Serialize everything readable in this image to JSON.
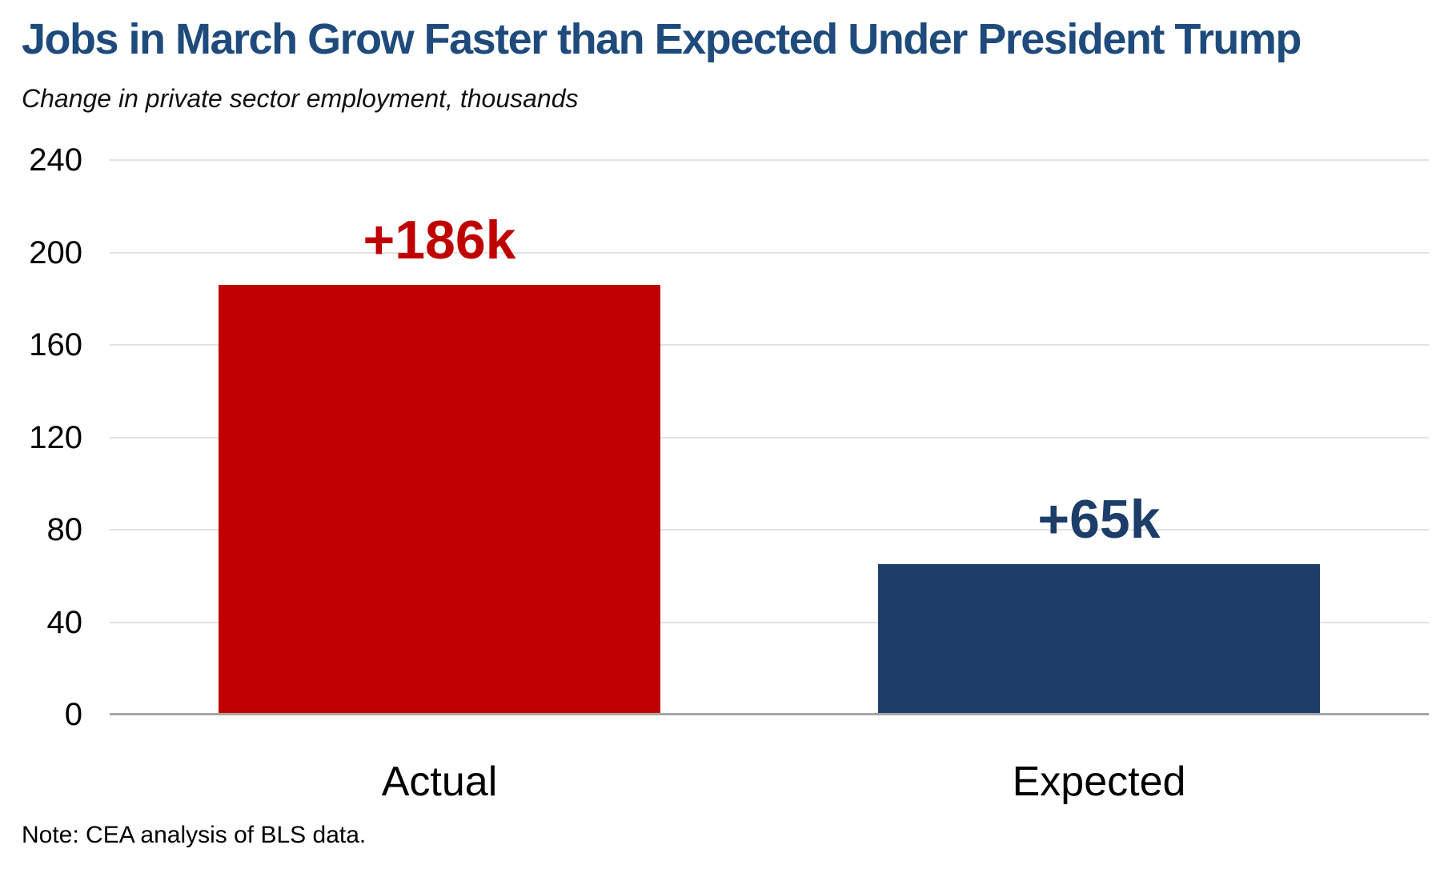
{
  "chart_data": {
    "type": "bar",
    "title": "Jobs in March Grow Faster than Expected Under President Trump",
    "subtitle": "Change in private sector employment, thousands",
    "categories": [
      "Actual",
      "Expected"
    ],
    "values": [
      186,
      65
    ],
    "data_labels": [
      "+186k",
      "+65k"
    ],
    "bar_colors": [
      "#c00000",
      "#1c3e68"
    ],
    "label_colors": [
      "#c00000",
      "#1c3e68"
    ],
    "ylim": [
      0,
      240
    ],
    "yticks": [
      240,
      200,
      160,
      120,
      80,
      40,
      0
    ],
    "grid": "horizontal",
    "legend": "none",
    "note": "Note: CEA analysis of BLS data."
  },
  "style_colors": {
    "title": "#1f4b7c",
    "gridline": "#e2e2e2",
    "axis_line": "#a6a6a6",
    "background": "#ffffff"
  }
}
